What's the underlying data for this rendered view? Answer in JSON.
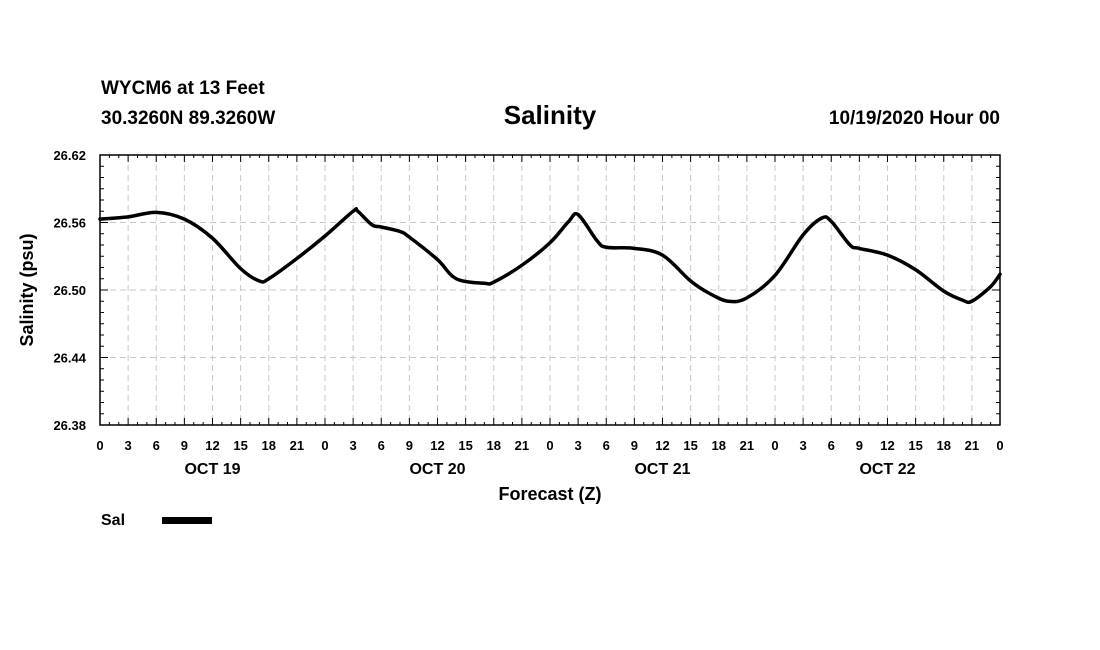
{
  "header": {
    "station": "WYCM6 at 13 Feet",
    "coords": "30.3260N 89.3260W",
    "title": "Salinity",
    "datetime": "10/19/2020 Hour 00"
  },
  "legend": {
    "label": "Sal"
  },
  "chart_data": {
    "type": "line",
    "title": "Salinity",
    "xlabel": "Forecast (Z)",
    "ylabel": "Salinity (psu)",
    "ylim": [
      26.38,
      26.62
    ],
    "xlim": [
      0,
      96
    ],
    "yticks": [
      "26.38",
      "26.44",
      "26.50",
      "26.56",
      "26.62"
    ],
    "yticks_values": [
      26.38,
      26.44,
      26.5,
      26.56,
      26.62
    ],
    "xtick_labels": [
      "0",
      "3",
      "6",
      "9",
      "12",
      "15",
      "18",
      "21",
      "0",
      "3",
      "6",
      "9",
      "12",
      "15",
      "18",
      "21",
      "0",
      "3",
      "6",
      "9",
      "12",
      "15",
      "18",
      "21",
      "0",
      "3",
      "6",
      "9",
      "12",
      "15",
      "18",
      "21",
      "0"
    ],
    "day_labels": [
      {
        "label": "OCT 19",
        "hour": 12
      },
      {
        "label": "OCT 20",
        "hour": 36
      },
      {
        "label": "OCT 21",
        "hour": 60
      },
      {
        "label": "OCT 22",
        "hour": 84
      }
    ],
    "grid": true,
    "series": [
      {
        "name": "Sal",
        "color": "#000000",
        "x": [
          0,
          3,
          6,
          9,
          12,
          15,
          17,
          18,
          21,
          24,
          27,
          27.5,
          29,
          30,
          32,
          33,
          36,
          38,
          41,
          42,
          45,
          48,
          50,
          51,
          53,
          54,
          57,
          60,
          63,
          65,
          67,
          69,
          72,
          75,
          77,
          78,
          80,
          81,
          84,
          87,
          90,
          92,
          93,
          95,
          96
        ],
        "values": [
          26.563,
          26.565,
          26.569,
          26.563,
          26.546,
          26.519,
          26.508,
          26.51,
          26.528,
          26.548,
          26.57,
          26.57,
          26.558,
          26.556,
          26.552,
          26.547,
          26.527,
          26.51,
          26.506,
          26.507,
          26.522,
          26.542,
          26.561,
          26.567,
          26.544,
          26.538,
          26.537,
          26.531,
          26.508,
          26.497,
          26.49,
          26.493,
          26.513,
          26.549,
          26.564,
          26.561,
          26.54,
          26.537,
          26.531,
          26.518,
          26.499,
          26.491,
          26.49,
          26.503,
          26.514
        ]
      }
    ]
  }
}
